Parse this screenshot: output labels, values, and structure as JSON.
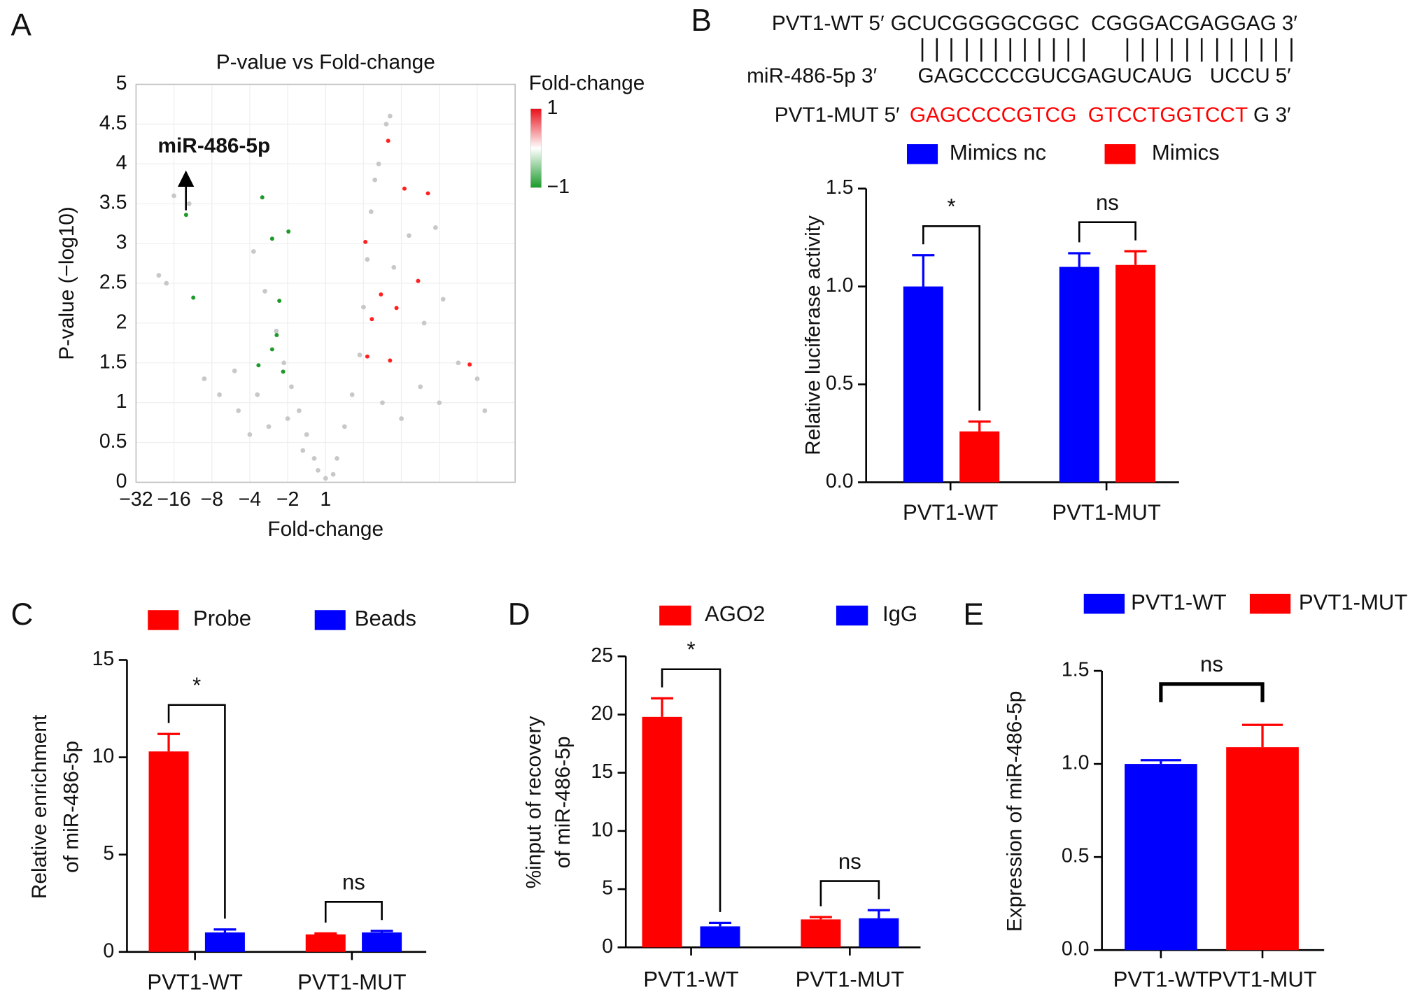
{
  "chart_data": [
    {
      "type": "scatter",
      "panel": "A",
      "title": "P-value vs Fold-change",
      "xlabel": "Fold-change",
      "ylabel": "P-value (−log10)",
      "xlim": [
        -5,
        5
      ],
      "ylim": [
        0,
        5
      ],
      "xticks": [
        {
          "value": -5,
          "label": "−32"
        },
        {
          "value": -4,
          "label": "−16"
        },
        {
          "value": -3,
          "label": "−8"
        },
        {
          "value": -2,
          "label": "−4"
        },
        {
          "value": -1,
          "label": "−2"
        },
        0,
        {
          "value": 0,
          "label": "1"
        },
        1,
        2,
        3,
        4,
        5
      ],
      "yticks": [
        0,
        0.5,
        1,
        1.5,
        2,
        2.5,
        3,
        3.5,
        4,
        4.5,
        5
      ],
      "grid": true,
      "series": [
        {
          "color": "#c8c8c8",
          "x": [
            -0.3,
            -0.5,
            -0.7,
            -0.9,
            -1.1,
            -0.6,
            -1.0,
            -1.5,
            -2.0,
            -2.3,
            -1.8,
            -1.3,
            -1.6,
            -1.9,
            -2.4,
            -2.8,
            -3.2,
            -4.2,
            -4.4,
            -3.6,
            -4.0,
            0,
            0.2,
            -0.2,
            0.3,
            0.5,
            0.7,
            0.9,
            1.0,
            1.1,
            1.2,
            1.4,
            1.7,
            1.5,
            2.0,
            2.5,
            3.0,
            3.5,
            4.0,
            4.2,
            1.8,
            2.2,
            2.6,
            3.1,
            1.6,
            1.3,
            2.9
          ],
          "y": [
            0.3,
            0.6,
            0.9,
            1.2,
            1.5,
            0.4,
            0.8,
            0.7,
            0.6,
            0.9,
            1.1,
            1.9,
            2.4,
            2.9,
            1.4,
            1.1,
            1.3,
            2.5,
            2.6,
            3.5,
            3.6,
            0.05,
            0.1,
            0.15,
            0.3,
            0.7,
            1.1,
            1.6,
            2.2,
            2.8,
            3.4,
            4.0,
            4.6,
            1.0,
            0.8,
            1.2,
            1.0,
            1.5,
            1.3,
            0.9,
            2.7,
            3.1,
            2.0,
            2.3,
            4.5,
            3.8,
            3.2
          ]
        },
        {
          "color": "#1f9a2a",
          "x": [
            -3.68,
            -3.49,
            -1.67,
            -1.41,
            -0.98,
            -1.22,
            -1.29,
            -1.77,
            -1.12,
            -1.41
          ],
          "y": [
            3.36,
            2.32,
            3.58,
            3.06,
            3.15,
            2.28,
            1.85,
            1.47,
            1.39,
            1.67
          ]
        },
        {
          "color": "#ff2020",
          "x": [
            1.65,
            2.08,
            2.7,
            1.05,
            1.46,
            2.44,
            1.87,
            1.22,
            1.1,
            1.7,
            3.8
          ],
          "y": [
            4.29,
            3.69,
            3.63,
            3.02,
            2.36,
            2.53,
            2.19,
            2.05,
            1.58,
            1.53,
            1.48
          ]
        }
      ],
      "annotation": "miR-486-5p",
      "colorbar": {
        "label": "Fold-change",
        "lim": [
          -1,
          1
        ],
        "ticks": [
          1,
          {
            "value": -1,
            "label": "−1"
          }
        ]
      }
    },
    {
      "type": "bar",
      "panel": "B",
      "ylabel": "Relative luciferase activity",
      "categories": [
        "PVT1-WT",
        "PVT1-MUT"
      ],
      "series": [
        {
          "name": "Mimics nc",
          "color": "#0000ff",
          "values": [
            1.0,
            1.1
          ],
          "errors": [
            0.16,
            0.07
          ]
        },
        {
          "name": "Mimics",
          "color": "#ff0000",
          "values": [
            0.26,
            1.11
          ],
          "errors": [
            0.05,
            0.07
          ]
        }
      ],
      "ylim": [
        0,
        1.5
      ],
      "yticks": [
        {
          "value": 0,
          "label": "0.0"
        },
        0.5,
        {
          "value": 1,
          "label": "1.0"
        },
        1.5
      ],
      "significance": [
        "*",
        "ns"
      ],
      "sequence_alignment": [
        {
          "prefix": "PVT1-WT 5′",
          "sequence": "GCUCGGGGCGGC  CGGGACGAGGAG",
          "suffix": "3′"
        },
        {
          "prefix": "miR-486-5p 3′",
          "sequence": "GAGCCCCGUCGAGUCAUG   UCCU",
          "suffix": "5′"
        },
        {
          "prefix": "PVT1-MUT 5′",
          "sequence": "GAGCCCCGTCG  GTCCTGGTCCT",
          "suffix": "G 3′",
          "color": "#ff0000"
        }
      ]
    },
    {
      "type": "bar",
      "panel": "C",
      "ylabel": [
        "Relative enrichment",
        "of miR-486-5p"
      ],
      "categories": [
        "PVT1-WT",
        "PVT1-MUT"
      ],
      "series": [
        {
          "name": "Probe",
          "color": "#ff0000",
          "values": [
            10.3,
            0.9
          ],
          "errors": [
            0.9,
            0.05
          ]
        },
        {
          "name": "Beads",
          "color": "#0000ff",
          "values": [
            1.0,
            1.0
          ],
          "errors": [
            0.15,
            0.08
          ]
        }
      ],
      "ylim": [
        0,
        15
      ],
      "yticks": [
        0,
        5,
        10,
        15
      ],
      "significance": [
        "*",
        "ns"
      ]
    },
    {
      "type": "bar",
      "panel": "D",
      "ylabel": [
        "%input of recovery",
        "of miR-486-5p"
      ],
      "categories": [
        "PVT1-WT",
        "PVT1-MUT"
      ],
      "series": [
        {
          "name": "AGO2",
          "color": "#ff0000",
          "values": [
            19.8,
            2.4
          ],
          "errors": [
            1.6,
            0.2
          ]
        },
        {
          "name": "IgG",
          "color": "#0000ff",
          "values": [
            1.8,
            2.5
          ],
          "errors": [
            0.3,
            0.7
          ]
        }
      ],
      "ylim": [
        0,
        25
      ],
      "yticks": [
        0,
        5,
        10,
        15,
        20,
        25
      ],
      "significance": [
        "*",
        "ns"
      ]
    },
    {
      "type": "bar",
      "panel": "E",
      "ylabel": "Expression of miR-486-5p",
      "categories": [
        "PVT1-WT",
        "PVT1-MUT"
      ],
      "values": [
        1.0,
        1.09
      ],
      "errors": [
        0.02,
        0.12
      ],
      "colors": [
        "#0000ff",
        "#ff0000"
      ],
      "ylim": [
        0,
        1.5
      ],
      "yticks": [
        {
          "value": 0,
          "label": "0.0"
        },
        0.5,
        {
          "value": 1,
          "label": "1.0"
        },
        1.5
      ],
      "significance": "ns"
    }
  ]
}
